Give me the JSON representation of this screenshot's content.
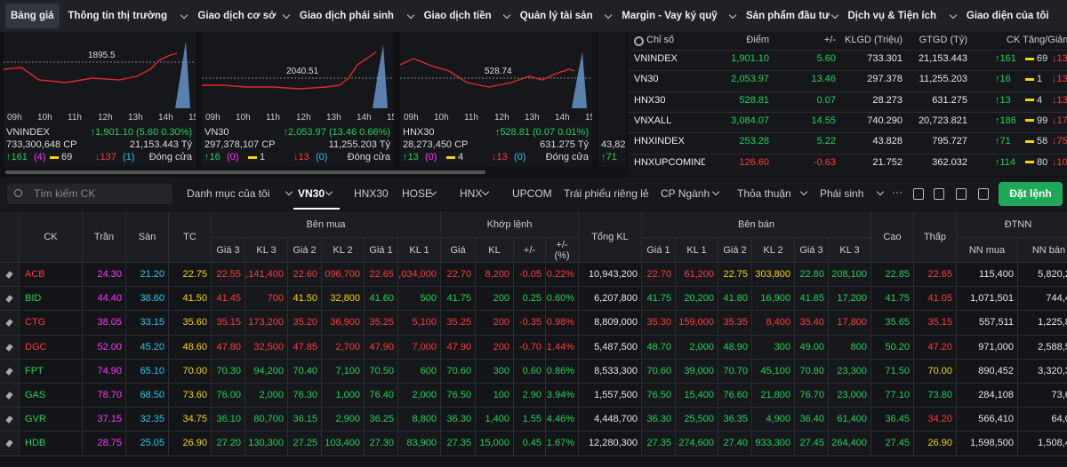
{
  "nav": [
    "Bảng giá",
    "Thông tin thị trường",
    "Giao dịch cơ sở",
    "Giao dịch phái sinh",
    "Giao dịch tiền",
    "Quản lý tài sản",
    "Margin - Vay ký quỹ",
    "Sản phẩm đầu tư",
    "Dịch vụ & Tiện ích",
    "Giao diện của tôi"
  ],
  "times": [
    "09h",
    "10h",
    "11h",
    "12h",
    "13h",
    "14h",
    "15h"
  ],
  "charts": [
    {
      "ref": "1895.5",
      "name": "VNINDEX",
      "change": "↑1,901.10 (5.60 0.30%)",
      "volume": "733,300,648 CP",
      "value": "21,153.443 Tỷ",
      "up": "↑161",
      "up_c": "(4)",
      "flat": "69",
      "down": "↓137",
      "down_f": "(1)",
      "status": "Đóng cửa"
    },
    {
      "ref": "2040.51",
      "name": "VN30",
      "change": "↑2,053.97 (13.46 0.66%)",
      "volume": "297,378,107 CP",
      "value": "11,255.203 Tỷ",
      "up": "↑16",
      "up_c": "(0)",
      "flat": "1",
      "down": "↓13",
      "down_f": "(0)",
      "status": "Đóng cửa"
    },
    {
      "ref": "528.74",
      "name": "HNX30",
      "change": "↑528.81 (0.07 0.01%)",
      "volume": "28,273,450 CP",
      "value": "631.275 Tỷ",
      "up": "↑13",
      "up_c": "(0)",
      "flat": "4",
      "down": "↓13",
      "down_f": "(0)",
      "status": "Đóng cửa"
    },
    {
      "volume": "43,82",
      "up": "↑71"
    }
  ],
  "indices": {
    "header": [
      "Chỉ số",
      "Điểm",
      "+/-",
      "KLGD (Triệu)",
      "GTGD (Tỷ)",
      "CK Tăng/Giảm"
    ],
    "rows": [
      [
        "VNINDEX",
        "1,901.10",
        "5.60",
        "733.301",
        "21,153.443",
        "↑161",
        "69",
        "↓137"
      ],
      [
        "VN30",
        "2,053.97",
        "13.46",
        "297.378",
        "11,255.203",
        "↑16",
        "1",
        "↓13"
      ],
      [
        "HNX30",
        "528.81",
        "0.07",
        "28.273",
        "631.275",
        "↑13",
        "4",
        "↓13"
      ],
      [
        "VNXALL",
        "3,084.07",
        "14.55",
        "740.290",
        "20,723.821",
        "↑186",
        "99",
        "↓178"
      ],
      [
        "HNXINDEX",
        "253.28",
        "5.22",
        "43.828",
        "795.727",
        "↑71",
        "58",
        "↓75"
      ],
      [
        "HNXUPCOMINDE",
        "126.60",
        "-0.63",
        "21.752",
        "362.032",
        "↑114",
        "80",
        "↓101"
      ]
    ]
  },
  "toolbar": {
    "search": "Tìm kiếm CK",
    "tabs": [
      "Danh mục của tôi",
      "VN30",
      "HNX30",
      "HOSE",
      "HNX",
      "UPCOM",
      "Trái phiếu riêng lẻ",
      "CP Ngành",
      "Thỏa thuận",
      "Phái sinh"
    ],
    "more": "···",
    "order": "Đặt lệnh"
  },
  "table": {
    "groups": [
      "Bên mua",
      "Khớp lệnh",
      "Bên bán",
      "ĐTNN"
    ],
    "single": [
      "CK",
      "Trần",
      "Sàn",
      "TC",
      "Tổng KL",
      "Cao",
      "Thấp"
    ],
    "buy": [
      "Giá 3",
      "KL 3",
      "Giá 2",
      "KL 2",
      "Giá 1",
      "KL 1"
    ],
    "match": [
      "Giá",
      "KL",
      "+/-",
      "+/-\n(%)"
    ],
    "sell": [
      "Giá 1",
      "KL 1",
      "Giá 2",
      "KL 2",
      "Giá 3",
      "KL 3"
    ],
    "foreign": [
      "NN mua",
      "NN bán"
    ],
    "rows": [
      [
        "ACB",
        "24.30",
        "21.20",
        "22.75",
        "22.55",
        ",141,400",
        "22.60",
        "096,700",
        "22.65",
        ",034,000",
        "22.70",
        "8,200",
        "-0.05",
        "-0.22%",
        "10,943,200",
        "22.70",
        "61,200",
        "22.75",
        "303,800",
        "22.80",
        "208,100",
        "22.85",
        "22.65",
        "115,400",
        "5,820,25"
      ],
      [
        "BID",
        "44.40",
        "38.60",
        "41.50",
        "41.45",
        "700",
        "41.50",
        "32,800",
        "41.60",
        "500",
        "41.75",
        "200",
        "0.25",
        "0.60%",
        "6,207,800",
        "41.75",
        "20,200",
        "41.80",
        "16,900",
        "41.85",
        "17,200",
        "41.75",
        "41.05",
        "1,071,501",
        "744,48"
      ],
      [
        "CTG",
        "38.05",
        "33.15",
        "35.60",
        "35.15",
        "173,200",
        "35.20",
        "36,900",
        "35.25",
        "5,100",
        "35.25",
        "200",
        "-0.35",
        "-0.98%",
        "8,809,000",
        "35.30",
        "159,000",
        "35.35",
        "8,400",
        "35.40",
        "17,800",
        "35.65",
        "35.15",
        "557,511",
        "1,225,84"
      ],
      [
        "DGC",
        "52.00",
        "45.20",
        "48.60",
        "47.80",
        "32,500",
        "47.85",
        "2,700",
        "47.90",
        "7,000",
        "47.90",
        "200",
        "-0.70",
        "-1.44%",
        "5,487,500",
        "48.70",
        "2,000",
        "48.90",
        "300",
        "49.00",
        "800",
        "50.20",
        "47.20",
        "971,000",
        "2,588,57"
      ],
      [
        "FPT",
        "74.90",
        "65.10",
        "70.00",
        "70.30",
        "94,200",
        "70.40",
        "7,100",
        "70.50",
        "600",
        "70.60",
        "300",
        "0.60",
        "0.86%",
        "8,533,300",
        "70.60",
        "39,000",
        "70.70",
        "45,100",
        "70.80",
        "23,300",
        "71.50",
        "70.00",
        "890,452",
        "3,320,38"
      ],
      [
        "GAS",
        "78.70",
        "68.50",
        "73.60",
        "76.00",
        "2,000",
        "76.30",
        "1,000",
        "76.40",
        "2,000",
        "76.50",
        "100",
        "2.90",
        "3.94%",
        "1,557,500",
        "76.50",
        "15,400",
        "76.60",
        "21,800",
        "76.70",
        "23,000",
        "77.10",
        "73.80",
        "284,108",
        "73,63"
      ],
      [
        "GVR",
        "37.15",
        "32.35",
        "34.75",
        "36.10",
        "80,700",
        "36.15",
        "2,900",
        "36.25",
        "8,800",
        "36.30",
        "1,400",
        "1.55",
        "4.46%",
        "4,448,700",
        "36.30",
        "25,500",
        "36.35",
        "4,900",
        "36.40",
        "61,400",
        "36.45",
        "34.20",
        "566,410",
        "64,05"
      ],
      [
        "HDB",
        "28.75",
        "25.05",
        "26.90",
        "27.20",
        "130,300",
        "27.25",
        "103,400",
        "27.30",
        "83,900",
        "27.35",
        "15,000",
        "0.45",
        "1.67%",
        "12,280,300",
        "27.35",
        "274,600",
        "27.40",
        "933,300",
        "27.45",
        "264,400",
        "27.45",
        "26.90",
        "1,598,500",
        "1,508,40"
      ]
    ]
  }
}
